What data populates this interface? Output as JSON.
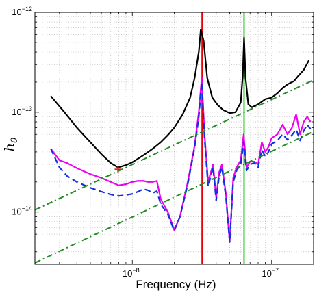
{
  "chart_data": {
    "type": "line",
    "title": "",
    "xlabel": "Frequency (Hz)",
    "ylabel_main": "h",
    "ylabel_sub": "0",
    "x_scale": "log",
    "y_scale": "log",
    "xlim": [
      2e-09,
      2e-07
    ],
    "ylim": [
      3e-15,
      1e-12
    ],
    "grid": true,
    "grid_style": "dotted",
    "legend": "none",
    "x_ticks": [
      {
        "value": 1e-08,
        "base": "10",
        "exp": "−8"
      },
      {
        "value": 1e-07,
        "base": "10",
        "exp": "−7"
      }
    ],
    "y_ticks": [
      {
        "value": 1e-14,
        "base": "10",
        "exp": "−14"
      },
      {
        "value": 1e-13,
        "base": "10",
        "exp": "−13"
      },
      {
        "value": 1e-12,
        "base": "10",
        "exp": "−12"
      }
    ],
    "vertical_lines": [
      {
        "x": 3.17e-08,
        "color": "#e8000b"
      },
      {
        "x": 6.34e-08,
        "color": "#22c422"
      }
    ],
    "marker": {
      "x": 7.9e-09,
      "y": 2.68e-14,
      "symbol": "+",
      "color": "#d62d20"
    },
    "series": [
      {
        "style": "solid",
        "color": "#000000",
        "width": 2.2,
        "x": [
          2.6e-09,
          3.2e-09,
          4e-09,
          5e-09,
          6e-09,
          7e-09,
          7.9e-09,
          9e-09,
          1e-08,
          1.2e-08,
          1.4e-08,
          1.6e-08,
          1.8e-08,
          2e-08,
          2.3e-08,
          2.6e-08,
          2.8e-08,
          3e-08,
          3.1e-08,
          3.25e-08,
          3.45e-08,
          3.75e-08,
          4.1e-08,
          4.5e-08,
          5e-08,
          5.5e-08,
          6e-08,
          6.2e-08,
          6.34e-08,
          6.5e-08,
          6.8e-08,
          7.2e-08,
          8e-08,
          9e-08,
          1e-07,
          1.1e-07,
          1.2e-07,
          1.3e-07,
          1.45e-07,
          1.55e-07,
          1.7e-07,
          1.85e-07
        ],
        "y": [
          1.45e-13,
          1.03e-13,
          7e-14,
          5e-14,
          3.8e-14,
          3.1e-14,
          2.8e-14,
          2.95e-14,
          3.15e-14,
          3.7e-14,
          4.3e-14,
          5e-14,
          5.9e-14,
          7e-14,
          9.5e-14,
          1.4e-13,
          2.2e-13,
          4e-13,
          6.7e-13,
          5.2e-13,
          2.2e-13,
          1.4e-13,
          1.18e-13,
          1.05e-13,
          9.8e-14,
          1e-13,
          1.25e-13,
          2.3e-13,
          5.6e-13,
          2.2e-13,
          1.2e-13,
          1.12e-13,
          1.2e-13,
          1.35e-13,
          1.4e-13,
          1.55e-13,
          1.75e-13,
          1.9e-13,
          2.05e-13,
          2.3e-13,
          2.65e-13,
          3.3e-13
        ]
      },
      {
        "style": "solid",
        "color": "#ee00ee",
        "width": 2.2,
        "x": [
          2.6e-09,
          3e-09,
          3.4e-09,
          4e-09,
          5e-09,
          6e-09,
          7e-09,
          8e-09,
          9e-09,
          1e-08,
          1.1e-08,
          1.2e-08,
          1.3e-08,
          1.4e-08,
          1.5e-08,
          1.6e-08,
          1.8e-08,
          2e-08,
          2.2e-08,
          2.5e-08,
          2.8e-08,
          3e-08,
          3.15e-08,
          3.3e-08,
          3.5e-08,
          3.8e-08,
          4e-08,
          4.2e-08,
          4.4e-08,
          4.7e-08,
          5e-08,
          5.3e-08,
          5.6e-08,
          6e-08,
          6.3e-08,
          6.6e-08,
          7e-08,
          7.5e-08,
          8e-08,
          8.5e-08,
          9e-08,
          9.5e-08,
          1e-07,
          1.1e-07,
          1.2e-07,
          1.3e-07,
          1.4e-07,
          1.5e-07,
          1.6e-07,
          1.7e-07,
          1.8e-07,
          1.9e-07
        ],
        "y": [
          4.3e-14,
          3.3e-14,
          3.1e-14,
          2.75e-14,
          2.4e-14,
          2.2e-14,
          2e-14,
          1.85e-14,
          1.9e-14,
          2e-14,
          2.05e-14,
          2.05e-14,
          2e-14,
          2e-14,
          2.05e-14,
          1.35e-14,
          1e-14,
          6.6e-15,
          9e-15,
          2e-14,
          4.6e-14,
          1e-13,
          2.2e-13,
          6e-14,
          2e-14,
          3e-14,
          1.4e-14,
          2.5e-14,
          3e-14,
          1.5e-14,
          5e-15,
          2.2e-14,
          2.8e-14,
          3.3e-14,
          6e-14,
          2.8e-14,
          3.2e-14,
          3.2e-14,
          3e-14,
          5e-14,
          4e-14,
          4.5e-14,
          5.5e-14,
          6e-14,
          7.5e-14,
          6e-14,
          7e-14,
          9.5e-14,
          6e-14,
          8e-14,
          9e-14,
          8e-14
        ]
      },
      {
        "style": "dashed",
        "color": "#1030e0",
        "width": 2.2,
        "x": [
          2.6e-09,
          3e-09,
          3.4e-09,
          4e-09,
          5e-09,
          6e-09,
          7e-09,
          8e-09,
          9e-09,
          1e-08,
          1.1e-08,
          1.2e-08,
          1.3e-08,
          1.4e-08,
          1.5e-08,
          1.6e-08,
          1.8e-08,
          2e-08,
          2.2e-08,
          2.5e-08,
          2.8e-08,
          3e-08,
          3.15e-08,
          3.3e-08,
          3.5e-08,
          3.8e-08,
          4e-08,
          4.2e-08,
          4.4e-08,
          4.7e-08,
          5e-08,
          5.3e-08,
          5.6e-08,
          6e-08,
          6.3e-08,
          6.6e-08,
          7e-08,
          7.5e-08,
          8e-08,
          8.5e-08,
          9e-08,
          9.5e-08,
          1e-07,
          1.1e-07,
          1.2e-07,
          1.3e-07,
          1.4e-07,
          1.5e-07,
          1.6e-07,
          1.7e-07,
          1.8e-07,
          1.9e-07
        ],
        "y": [
          4.3e-14,
          2.8e-14,
          2.3e-14,
          2e-14,
          1.75e-14,
          1.6e-14,
          1.5e-14,
          1.45e-14,
          1.48e-14,
          1.52e-14,
          1.6e-14,
          1.7e-14,
          1.65e-14,
          1.55e-14,
          1.62e-14,
          1.2e-14,
          9.5e-15,
          6.5e-15,
          9e-15,
          1.9e-14,
          4.4e-14,
          9e-14,
          2e-13,
          5.5e-14,
          1.8e-14,
          2.8e-14,
          1.3e-14,
          2.3e-14,
          2.8e-14,
          1.4e-14,
          5e-15,
          2e-14,
          2.6e-14,
          3e-14,
          5e-14,
          2.6e-14,
          3e-14,
          3.1e-14,
          2.8e-14,
          4.2e-14,
          3.6e-14,
          4e-14,
          4.8e-14,
          5.2e-14,
          6e-14,
          5.3e-14,
          5.9e-14,
          6.7e-14,
          5.2e-14,
          6.5e-14,
          7.5e-14,
          6.8e-14
        ]
      },
      {
        "style": "dashdot",
        "color": "#228B22",
        "width": 2.0,
        "x": [
          2e-09,
          2e-07
        ],
        "y": [
          1.05e-14,
          2.1e-13
        ]
      },
      {
        "style": "dashdot",
        "color": "#228B22",
        "width": 2.0,
        "x": [
          2e-09,
          2e-07
        ],
        "y": [
          3.1e-15,
          6.4e-14
        ]
      }
    ]
  }
}
